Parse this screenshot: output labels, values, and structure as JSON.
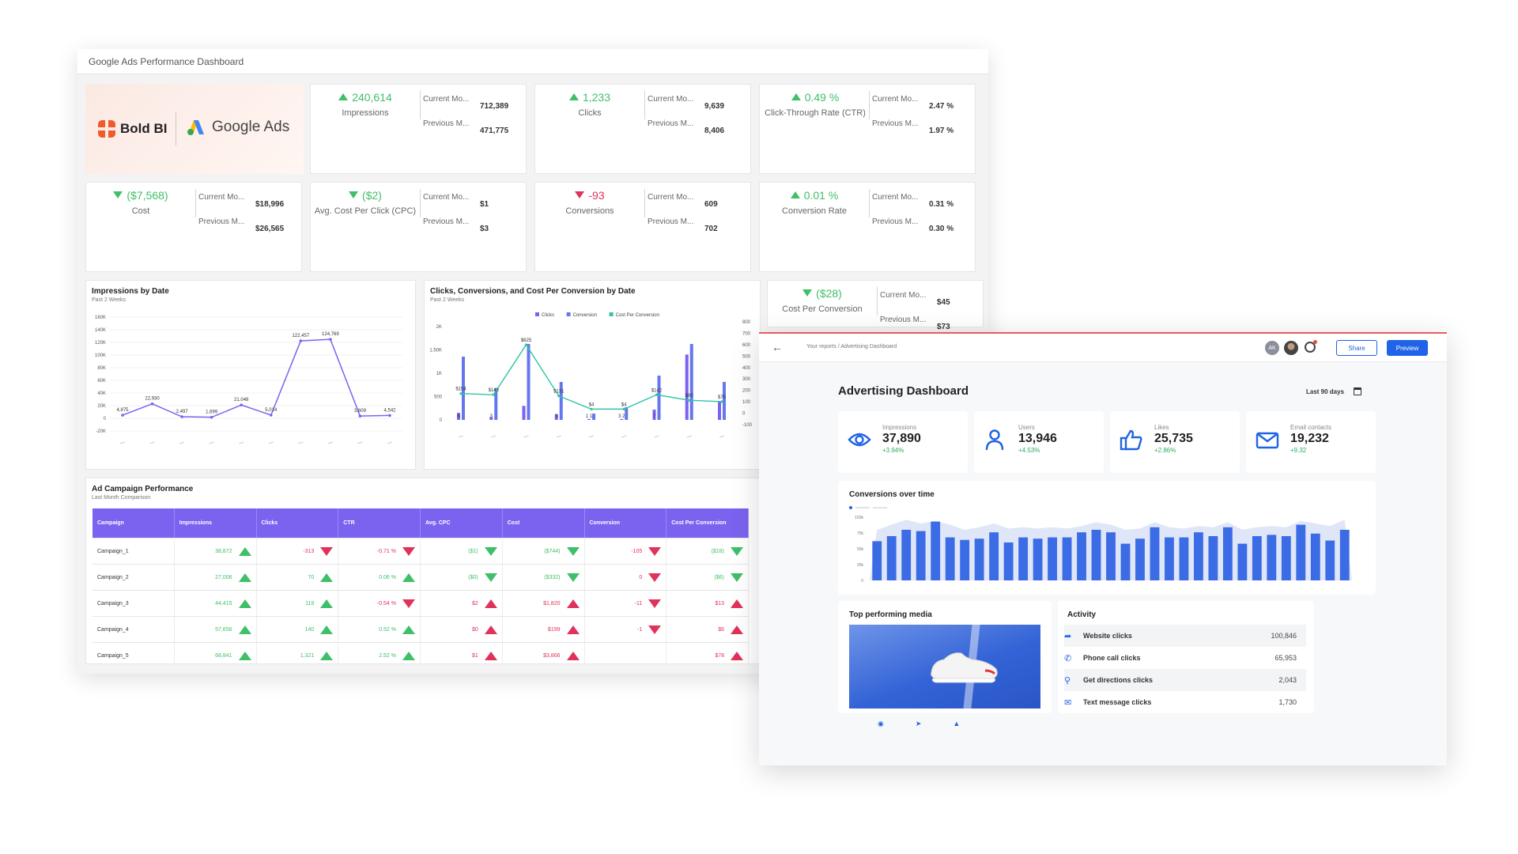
{
  "left_dashboard": {
    "title": "Google Ads Performance Dashboard",
    "brand": {
      "boldbi": "Bold BI",
      "google_ads": "Google Ads"
    },
    "kpis": [
      {
        "value": "240,614",
        "label": "Impressions",
        "trend": "up",
        "current_label": "Current Mo...",
        "current": "712,389",
        "previous_label": "Previous M...",
        "previous": "471,775"
      },
      {
        "value": "1,233",
        "label": "Clicks",
        "trend": "up",
        "current_label": "Current Mo...",
        "current": "9,639",
        "previous_label": "Previous M...",
        "previous": "8,406"
      },
      {
        "value": "0.49 %",
        "label": "Click-Through Rate (CTR)",
        "trend": "up",
        "current_label": "Current Mo...",
        "current": "2.47 %",
        "previous_label": "Previous M...",
        "previous": "1.97 %"
      },
      {
        "value": "($7,568)",
        "label": "Cost",
        "trend": "down-good",
        "current_label": "Current Mo...",
        "current": "$18,996",
        "previous_label": "Previous M...",
        "previous": "$26,565"
      },
      {
        "value": "($2)",
        "label": "Avg. Cost Per Click (CPC)",
        "trend": "down-good",
        "current_label": "Current Mo...",
        "current": "$1",
        "previous_label": "Previous M...",
        "previous": "$3"
      },
      {
        "value": "-93",
        "label": "Conversions",
        "trend": "down-bad",
        "current_label": "Current Mo...",
        "current": "609",
        "previous_label": "Previous M...",
        "previous": "702"
      },
      {
        "value": "0.01 %",
        "label": "Conversion Rate",
        "trend": "up",
        "current_label": "Current Mo...",
        "current": "0.31 %",
        "previous_label": "Previous M...",
        "previous": "0.30 %"
      },
      {
        "value": "($28)",
        "label": "Cost Per Conversion",
        "trend": "down-good",
        "current_label": "Current Mo...",
        "current": "$45",
        "previous_label": "Previous M...",
        "previous": "$73"
      }
    ],
    "colors": {
      "up": "#3fbf68",
      "down_bad": "#e0325a",
      "accent": "#7b63f0",
      "teal": "#2ec4a6"
    },
    "table": {
      "title": "Ad Campaign Performance",
      "subtitle": "Last Month Comparison",
      "columns": [
        "Campaign",
        "Impressions",
        "Clicks",
        "CTR",
        "Avg. CPC",
        "Cost",
        "Conversion",
        "Cost Per Conversion"
      ],
      "rows": [
        {
          "name": "Campaign_1",
          "cells": [
            {
              "v": "38,872",
              "t": "up-g"
            },
            {
              "v": "-313",
              "t": "down-r"
            },
            {
              "v": "-0.71 %",
              "t": "down-r"
            },
            {
              "v": "($1)",
              "t": "down-g"
            },
            {
              "v": "($744)",
              "t": "down-g"
            },
            {
              "v": "-105",
              "t": "down-r"
            },
            {
              "v": "($18)",
              "t": "down-g"
            }
          ]
        },
        {
          "name": "Campaign_2",
          "cells": [
            {
              "v": "27,006",
              "t": "up-g"
            },
            {
              "v": "70",
              "t": "up-g"
            },
            {
              "v": "0.06 %",
              "t": "up-g"
            },
            {
              "v": "($0)",
              "t": "down-g"
            },
            {
              "v": "($332)",
              "t": "down-g"
            },
            {
              "v": "0",
              "t": "down-r"
            },
            {
              "v": "($6)",
              "t": "down-g"
            }
          ]
        },
        {
          "name": "Campaign_3",
          "cells": [
            {
              "v": "44,415",
              "t": "up-g"
            },
            {
              "v": "119",
              "t": "up-g"
            },
            {
              "v": "-0.54 %",
              "t": "down-r"
            },
            {
              "v": "$2",
              "t": "up-r"
            },
            {
              "v": "$1,820",
              "t": "up-r"
            },
            {
              "v": "-11",
              "t": "down-r"
            },
            {
              "v": "$13",
              "t": "up-r"
            }
          ]
        },
        {
          "name": "Campaign_4",
          "cells": [
            {
              "v": "57,656",
              "t": "up-g"
            },
            {
              "v": "140",
              "t": "up-g"
            },
            {
              "v": "0.52 %",
              "t": "up-g"
            },
            {
              "v": "$0",
              "t": "up-r"
            },
            {
              "v": "$199",
              "t": "up-r"
            },
            {
              "v": "-1",
              "t": "down-r"
            },
            {
              "v": "$6",
              "t": "up-r"
            }
          ]
        },
        {
          "name": "Campaign_5",
          "cells": [
            {
              "v": "68,841",
              "t": "up-g"
            },
            {
              "v": "1,321",
              "t": "up-g"
            },
            {
              "v": "2.52 %",
              "t": "up-g"
            },
            {
              "v": "$1",
              "t": "up-r"
            },
            {
              "v": "$3,866",
              "t": "up-r"
            },
            {
              "v": "",
              "t": "none"
            },
            {
              "v": "$78",
              "t": "up-r"
            }
          ]
        }
      ]
    }
  },
  "chart_data": [
    {
      "type": "line",
      "title": "Impressions by Date",
      "subtitle": "Past 2 Weeks",
      "x": [
        "d1",
        "d2",
        "d3",
        "d4",
        "d5",
        "d6",
        "d7",
        "d8",
        "d9",
        "d10"
      ],
      "values": [
        4875,
        22930,
        2497,
        1699,
        21048,
        5014,
        122457,
        124769,
        3609,
        4542
      ],
      "data_labels": [
        "4,875",
        "22,930",
        "2,497",
        "1,699",
        "21,048",
        "5,014",
        "122,457",
        "124,769",
        "3,609",
        "4,542"
      ],
      "yticks": [
        "160K",
        "140K",
        "120K",
        "100K",
        "80K",
        "60K",
        "40K",
        "20K",
        "0",
        "-20K"
      ],
      "ylim": [
        -20000,
        160000
      ],
      "color": "#7b63f0"
    },
    {
      "type": "bar+line",
      "title": "Clicks, Conversions, and Cost Per Conversion by Date",
      "subtitle": "Past 2 Weeks",
      "legend": [
        "Clicks",
        "Conversion",
        "Cost Per Conversion"
      ],
      "yticks_left": [
        "2K",
        "1.50K",
        "1K",
        "500",
        "0"
      ],
      "yticks_right": [
        "800",
        "700",
        "600",
        "500",
        "400",
        "300",
        "200",
        "100",
        "0",
        "-100"
      ],
      "ylim_left": [
        0,
        2000
      ],
      "ylim_right": [
        -100,
        800
      ],
      "clicks": [
        150,
        60,
        300,
        120,
        20,
        20,
        220,
        1400,
        400
      ],
      "conversions": [
        10,
        5,
        12,
        6,
        1,
        2,
        7,
        12,
        6
      ],
      "cost_per_conversion": [
        154,
        143,
        625,
        131,
        4,
        4,
        142,
        89,
        76
      ],
      "cpc_labels": [
        "$154",
        "$143",
        "$625",
        "$131",
        "$4",
        "$4",
        "$142",
        "$89",
        "$76"
      ],
      "bar_labels": [
        "6",
        "3",
        "",
        "3",
        "1 1",
        "3 2",
        "7",
        "",
        ""
      ]
    },
    {
      "type": "bar",
      "title": "Conversions over time",
      "yticks": [
        "100k",
        "75k",
        "50k",
        "25k",
        "0"
      ],
      "ylim": [
        0,
        100000
      ],
      "values": [
        62000,
        70000,
        80000,
        78000,
        93000,
        68000,
        64000,
        66000,
        76000,
        60000,
        68000,
        66000,
        68000,
        68000,
        76000,
        80000,
        76000,
        58000,
        66000,
        84000,
        68000,
        68000,
        76000,
        70000,
        84000,
        58000,
        70000,
        72000,
        70000,
        88000,
        74000,
        63000,
        80000
      ],
      "area_values": [
        80000,
        88000,
        96000,
        90000,
        94000,
        88000,
        80000,
        84000,
        90000,
        82000,
        84000,
        82000,
        84000,
        82000,
        86000,
        92000,
        88000,
        80000,
        82000,
        92000,
        84000,
        82000,
        86000,
        84000,
        92000,
        80000,
        84000,
        86000,
        84000,
        94000,
        90000,
        86000,
        96000
      ],
      "color": "#3b6ce6"
    }
  ],
  "right_dashboard": {
    "breadcrumb": "Your reports / Advertising Dashboard",
    "title": "Advertising Dashboard",
    "date_range": "Last 90 days",
    "avatar_initials": "AK",
    "share_label": "Share",
    "preview_label": "Preview",
    "kpis": [
      {
        "icon": "eye-icon",
        "label": "Impressions",
        "value": "37,890",
        "change": "+3.94%"
      },
      {
        "icon": "user-icon",
        "label": "Users",
        "value": "13,946",
        "change": "+4.53%"
      },
      {
        "icon": "thumbs-up-icon",
        "label": "Likes",
        "value": "25,735",
        "change": "+2.86%"
      },
      {
        "icon": "mail-icon",
        "label": "Email contacts",
        "value": "19,232",
        "change": "+9.32"
      }
    ],
    "media_title": "Top performing media",
    "activity_title": "Activity",
    "activity": [
      {
        "icon": "cursor-icon",
        "label": "Website clicks",
        "value": "100,846"
      },
      {
        "icon": "phone-icon",
        "label": "Phone call clicks",
        "value": "65,953"
      },
      {
        "icon": "location-pin-icon",
        "label": "Get directions clicks",
        "value": "2,043"
      },
      {
        "icon": "message-icon",
        "label": "Text message clicks",
        "value": "1,730"
      }
    ],
    "colors": {
      "primary": "#1f63e6",
      "bar": "#3b6ce6",
      "area": "#dfe6f7",
      "positive": "#27ae60"
    }
  }
}
